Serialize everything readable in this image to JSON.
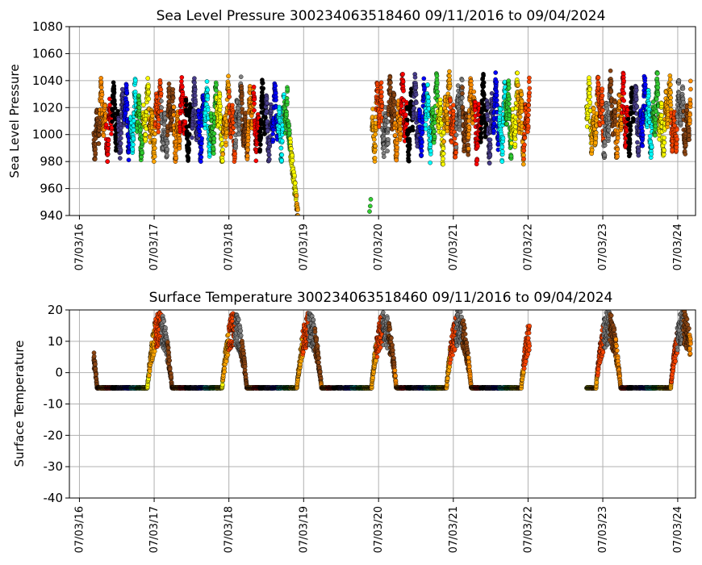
{
  "chart_data": [
    {
      "type": "scatter",
      "title": "Sea Level Pressure 300234063518460  09/11/2016 to 09/04/2024",
      "xlabel": "",
      "ylabel": "Sea Level Pressure",
      "xlim": [
        "2016-05-15",
        "2024-09-28"
      ],
      "ylim": [
        940,
        1080
      ],
      "yticks": [
        940,
        960,
        980,
        1000,
        1020,
        1040,
        1060,
        1080
      ],
      "xticks": [
        "07/03/16",
        "07/03/17",
        "07/03/18",
        "07/03/19",
        "07/03/20",
        "07/03/21",
        "07/03/22",
        "07/03/23",
        "07/03/24"
      ],
      "grid": true,
      "color_cycle_days": 30,
      "colors": [
        "#8B4513",
        "#FF8C00",
        "#FF0000",
        "#000000",
        "#483D8B",
        "#0000FF",
        "#00FFFF",
        "#32CD32",
        "#FFFF00",
        "#FFA500",
        "#FF4500",
        "#808080"
      ],
      "segments": [
        {
          "start": "2016-09-11",
          "end": "2019-04-15",
          "low": 980,
          "high": 1050,
          "mean": 1010
        },
        {
          "start": "2019-04-15",
          "end": "2019-06-05",
          "low": 940,
          "high": 1010,
          "mean": 975
        },
        {
          "start": "2020-06-01",
          "end": "2022-07-10",
          "low": 978,
          "high": 1052,
          "mean": 1012
        },
        {
          "start": "2023-04-15",
          "end": "2024-09-04",
          "low": 983,
          "high": 1055,
          "mean": 1013
        }
      ]
    },
    {
      "type": "scatter",
      "title": "Surface Temperature 300234063518460  09/11/2016 to 09/04/2024",
      "xlabel": "",
      "ylabel": "Surface Temperature",
      "xlim": [
        "2016-05-15",
        "2024-09-28"
      ],
      "ylim": [
        -40,
        20
      ],
      "yticks": [
        -40,
        -30,
        -20,
        -10,
        0,
        10,
        20
      ],
      "xticks": [
        "07/03/16",
        "07/03/17",
        "07/03/18",
        "07/03/19",
        "07/03/20",
        "07/03/21",
        "07/03/22",
        "07/03/23",
        "07/03/24"
      ],
      "grid": true,
      "baseline": -5,
      "summer_peak": 20,
      "segments": [
        {
          "start": "2016-09-11",
          "end": "2022-07-10"
        },
        {
          "start": "2023-04-15",
          "end": "2024-09-04"
        }
      ]
    }
  ]
}
